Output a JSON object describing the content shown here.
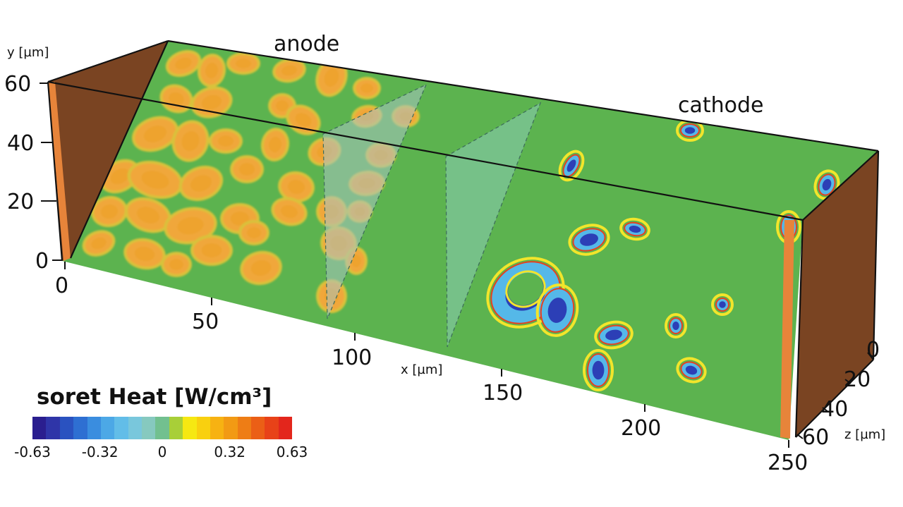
{
  "labels": {
    "anode": "anode",
    "cathode": "cathode"
  },
  "axes": {
    "y": {
      "label": "y [µm]",
      "ticks": [
        "60",
        "40",
        "20",
        "0"
      ]
    },
    "x": {
      "label": "x [µm]",
      "ticks": [
        "0",
        "50",
        "100",
        "150",
        "200",
        "250"
      ]
    },
    "z": {
      "label": "z [µm]",
      "ticks": [
        "0",
        "20",
        "40",
        "60"
      ]
    }
  },
  "legend": {
    "title": "soret Heat [W/cm³]",
    "ticks": [
      "-0.63",
      "-0.32",
      "0",
      "0.32",
      "0.63"
    ]
  },
  "colormap": [
    "#2a1e8f",
    "#2f35a8",
    "#2a52c0",
    "#2e6fd2",
    "#3a8ddf",
    "#4ca8e6",
    "#62bde8",
    "#79c7dc",
    "#86c9bf",
    "#72c08f",
    "#a8cf38",
    "#f6e812",
    "#f9d00f",
    "#f7b212",
    "#f29a14",
    "#ee7d15",
    "#eb5f16",
    "#e84218",
    "#e3261c"
  ],
  "colors": {
    "background_field": "#5cb34f",
    "anode_blob": "#f0a73a",
    "anode_blob_core": "#eea32d",
    "anode_blob_edge": "#d8c23a",
    "blue_core": "#2c3fb6",
    "cyan_ring": "#55b8e8",
    "yellow_ring": "#f2e52b",
    "red_ring": "#e6401f",
    "end_face": "#7a4422",
    "end_edge": "#e7843a"
  }
}
